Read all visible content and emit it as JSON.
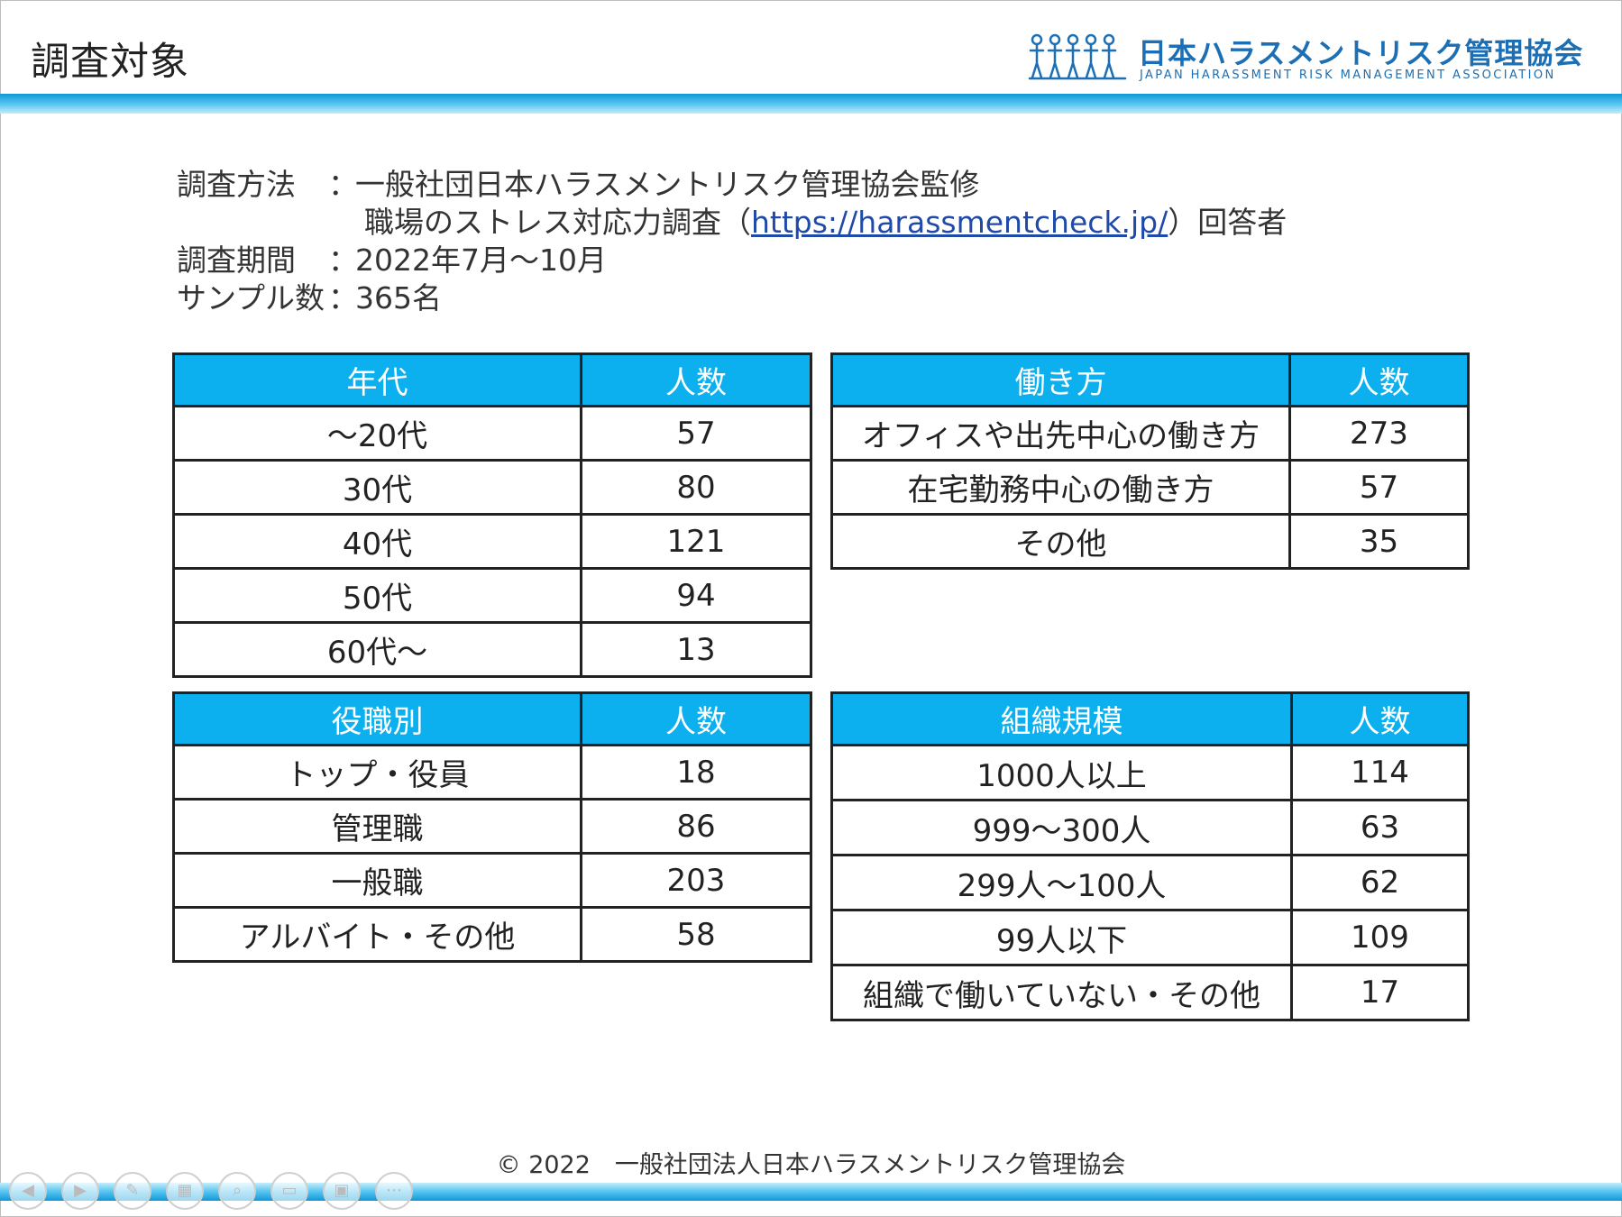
{
  "slide": {
    "title": "調査対象"
  },
  "logo": {
    "name_jp": "日本ハラスメントリスク管理協会",
    "name_en": "JAPAN HARASSMENT RISK MANAGEMENT ASSOCIATION"
  },
  "survey": {
    "method_label": "調査方法",
    "colon": "：",
    "method_line1": "一般社団日本ハラスメントリスク管理協会監修",
    "method_line2_prefix": "職場のストレス対応力調査（",
    "method_link": "https://harassmentcheck.jp/",
    "method_line2_suffix": "）回答者",
    "period_label": "調査期間",
    "period_value": "2022年7月～10月",
    "sample_label": "サンプル数",
    "sample_value": "365名"
  },
  "tables": {
    "age": {
      "header": [
        "年代",
        "人数"
      ],
      "rows": [
        [
          "～20代",
          "57"
        ],
        [
          "30代",
          "80"
        ],
        [
          "40代",
          "121"
        ],
        [
          "50代",
          "94"
        ],
        [
          "60代～",
          "13"
        ]
      ]
    },
    "work": {
      "header": [
        "働き方",
        "人数"
      ],
      "rows": [
        [
          "オフィスや出先中心の働き方",
          "273"
        ],
        [
          "在宅勤務中心の働き方",
          "57"
        ],
        [
          "その他",
          "35"
        ]
      ]
    },
    "position": {
      "header": [
        "役職別",
        "人数"
      ],
      "rows": [
        [
          "トップ・役員",
          "18"
        ],
        [
          "管理職",
          "86"
        ],
        [
          "一般職",
          "203"
        ],
        [
          "アルバイト・その他",
          "58"
        ]
      ]
    },
    "org": {
      "header": [
        "組織規模",
        "人数"
      ],
      "rows": [
        [
          "1000人以上",
          "114"
        ],
        [
          "999～300人",
          "63"
        ],
        [
          "299人～100人",
          "62"
        ],
        [
          "99人以下",
          "109"
        ],
        [
          "組織で働いていない・その他",
          "17"
        ]
      ]
    }
  },
  "footer": {
    "copyright": "© 2022　一般社団法人日本ハラスメントリスク管理協会"
  },
  "controls": [
    {
      "name": "previous-slide-button",
      "icon": "arrow-left-icon",
      "glyph": "◀"
    },
    {
      "name": "next-slide-button",
      "icon": "arrow-right-icon",
      "glyph": "▶"
    },
    {
      "name": "pen-tool-button",
      "icon": "pen-icon",
      "glyph": "✎"
    },
    {
      "name": "all-slides-button",
      "icon": "grid-icon",
      "glyph": "▦"
    },
    {
      "name": "zoom-button",
      "icon": "magnifier-icon",
      "glyph": "⌕"
    },
    {
      "name": "subtitles-button",
      "icon": "caption-icon",
      "glyph": "▭"
    },
    {
      "name": "camera-toggle-button",
      "icon": "camera-icon",
      "glyph": "▣"
    },
    {
      "name": "more-options-button",
      "icon": "ellipsis-icon",
      "glyph": "⋯"
    }
  ],
  "colors": {
    "header_fill": "#0cb0ef",
    "accent_band": "#0f98d7",
    "logo_blue": "#1c6fb5"
  }
}
